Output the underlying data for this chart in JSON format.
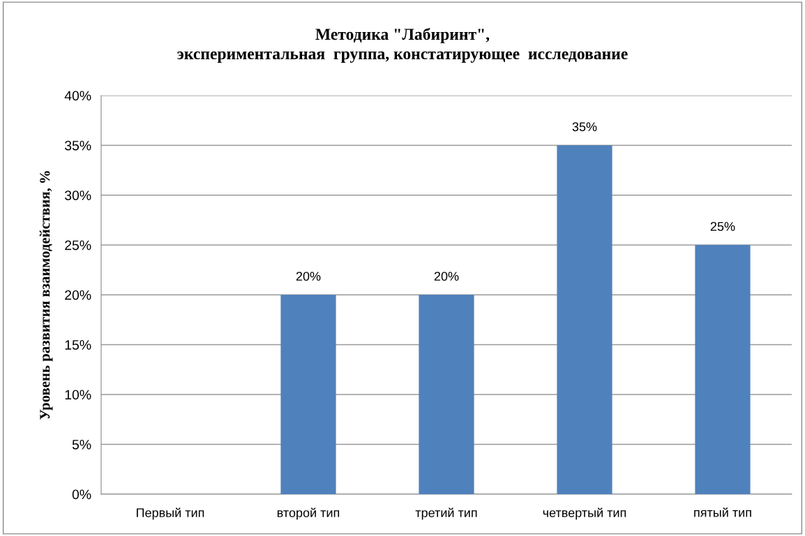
{
  "chart_data": {
    "type": "bar",
    "title": "Методика \"Лабиринт\",\nэкспериментальная  группа, констатирующее  исследование",
    "ylabel": "Уровень развития взаимодействия, %",
    "categories": [
      "Первый тип",
      "второй тип",
      "третий тип",
      "четвертый тип",
      "пятый тип"
    ],
    "values": [
      0,
      20,
      20,
      35,
      25
    ],
    "value_labels": [
      null,
      "20%",
      "20%",
      "35%",
      "25%"
    ],
    "color": "#4f81bd",
    "ylim": [
      0,
      40
    ],
    "yticks": [
      {
        "value": 0,
        "label": "0%"
      },
      {
        "value": 5,
        "label": "5%"
      },
      {
        "value": 10,
        "label": "10%"
      },
      {
        "value": 15,
        "label": "15%"
      },
      {
        "value": 20,
        "label": "20%"
      },
      {
        "value": 25,
        "label": "25%"
      },
      {
        "value": 30,
        "label": "30%"
      },
      {
        "value": 35,
        "label": "35%"
      },
      {
        "value": 40,
        "label": "40%"
      }
    ],
    "grid": "y"
  }
}
